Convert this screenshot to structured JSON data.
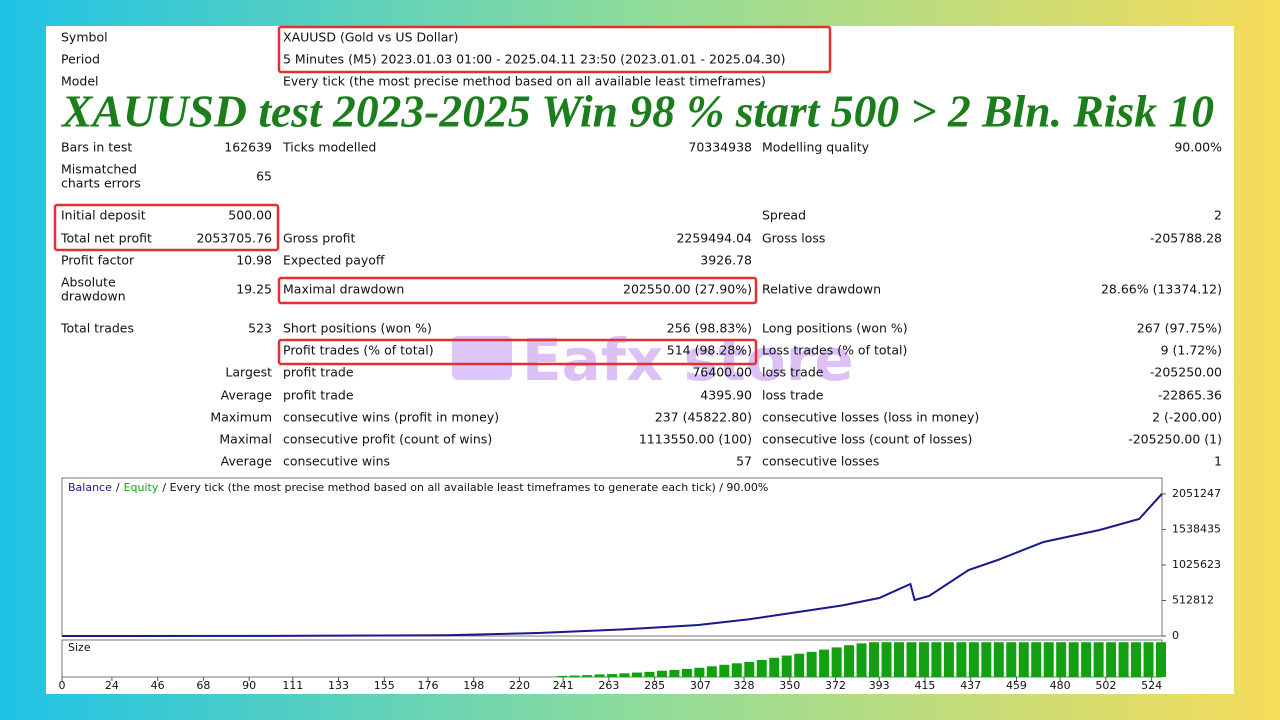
{
  "header": {
    "rows": [
      {
        "label": "Symbol",
        "value": "XAUUSD (Gold vs US Dollar)"
      },
      {
        "label": "Period",
        "value": "5 Minutes (M5) 2023.01.03 01:00 - 2025.04.11 23:50 (2023.01.01 - 2025.04.30)"
      },
      {
        "label": "Model",
        "value": "Every tick (the most precise method based on all available least timeframes)"
      }
    ]
  },
  "headline": "XAUUSD  test 2023-2025 Win 98 % start 500 > 2 Bln. Risk 10",
  "watermark": "Eafx store",
  "report": {
    "rows": [
      {
        "label": "Bars in test",
        "value": "162639",
        "label2": "Ticks modelled",
        "value2": "70334938",
        "label3": "Modelling quality",
        "value3": "90.00%"
      },
      {
        "label": [
          "Mismatched",
          "charts errors"
        ],
        "value": "65"
      },
      {
        "label": "Initial deposit",
        "value": "500.00",
        "label3": "Spread",
        "value3": "2"
      },
      {
        "label": "Total net profit",
        "value": "2053705.76",
        "label2": "Gross profit",
        "value2": "2259494.04",
        "label3": "Gross loss",
        "value3": "-205788.28"
      },
      {
        "label": "Profit factor",
        "value": "10.98",
        "label2": "Expected payoff",
        "value2": "3926.78"
      },
      {
        "label": [
          "Absolute",
          "drawdown"
        ],
        "value": "19.25",
        "label2": "Maximal drawdown",
        "value2": "202550.00 (27.90%)",
        "label3": "Relative drawdown",
        "value3": "28.66% (13374.12)"
      },
      {
        "label": "Total trades",
        "value": "523",
        "label2": "Short positions (won %)",
        "value2": "256 (98.83%)",
        "label3": "Long positions (won %)",
        "value3": "267 (97.75%)"
      },
      {
        "label2": "Profit trades (% of total)",
        "value2": "514 (98.28%)",
        "label3": "Loss trades (% of total)",
        "value3": "9 (1.72%)"
      },
      {
        "prefix": "Largest",
        "label2": "profit trade",
        "value2": "76400.00",
        "label3": "loss trade",
        "value3": "-205250.00"
      },
      {
        "prefix": "Average",
        "label2": "profit trade",
        "value2": "4395.90",
        "label3": "loss trade",
        "value3": "-22865.36"
      },
      {
        "prefix": "Maximum",
        "label2": "consecutive wins (profit in money)",
        "value2": "237 (45822.80)",
        "label3": "consecutive losses (loss in money)",
        "value3": "2 (-200.00)"
      },
      {
        "prefix": "Maximal",
        "label2": "consecutive profit (count of wins)",
        "value2": "1113550.00 (100)",
        "label3": "consecutive loss (count of losses)",
        "value3": "-205250.00 (1)"
      },
      {
        "prefix": "Average",
        "label2": "consecutive wins",
        "value2": "57",
        "label3": "consecutive losses",
        "value3": "1"
      }
    ]
  },
  "chart_data": [
    {
      "type": "line",
      "legend_separator": "/",
      "legend_note": "/ Every tick (the most precise method based on all available least timeframes to generate each tick) / 90.00%",
      "x": [
        0,
        100,
        185,
        229,
        270,
        306,
        330,
        354,
        375,
        393,
        408,
        410,
        417,
        436,
        450,
        472,
        499,
        518,
        529
      ],
      "series": [
        {
          "name": "Balance",
          "color": "#1a1a8c",
          "values": [
            500,
            2000,
            12000,
            43000,
            95000,
            159000,
            240000,
            347000,
            440000,
            549000,
            751000,
            520000,
            578000,
            953000,
            1098000,
            1358000,
            1531000,
            1690000,
            2053705
          ]
        },
        {
          "name": "Equity",
          "color": "#1aa01a",
          "values": [
            500,
            2000,
            12000,
            43000,
            95000,
            159000,
            240000,
            347000,
            440000,
            549000,
            751000,
            520000,
            578000,
            953000,
            1098000,
            1358000,
            1531000,
            1690000,
            2053705
          ]
        }
      ],
      "xlim": [
        0,
        529
      ],
      "xticks": [
        0,
        24,
        46,
        68,
        90,
        111,
        133,
        155,
        176,
        198,
        220,
        241,
        263,
        285,
        307,
        328,
        350,
        372,
        393,
        415,
        437,
        459,
        480,
        502,
        524
      ],
      "ylim": [
        0,
        2282000
      ],
      "yticks": [
        0,
        512812,
        1025623,
        1538435,
        2051247
      ]
    },
    {
      "type": "bar",
      "title": "Size",
      "color": "#12a012",
      "x": [
        241,
        247,
        253,
        259,
        265,
        271,
        277,
        283,
        289,
        295,
        301,
        307,
        313,
        319,
        325,
        331,
        337,
        343,
        349,
        355,
        361,
        367,
        373,
        379,
        385,
        391,
        397,
        403,
        409,
        415,
        421,
        427,
        433,
        439,
        445,
        451,
        457,
        463,
        469,
        475,
        481,
        487,
        493,
        499,
        505,
        511,
        517,
        523,
        529
      ],
      "values": [
        0.3,
        0.4,
        0.5,
        0.7,
        0.8,
        1.0,
        1.2,
        1.4,
        1.7,
        1.9,
        2.2,
        2.5,
        2.9,
        3.3,
        3.7,
        4.1,
        4.6,
        5.2,
        5.8,
        6.3,
        6.8,
        7.4,
        8.0,
        8.6,
        9.1,
        9.4,
        9.4,
        9.4,
        9.4,
        9.4,
        9.4,
        9.4,
        9.4,
        9.4,
        9.4,
        9.4,
        9.4,
        9.4,
        9.4,
        9.4,
        9.4,
        9.4,
        9.4,
        9.4,
        9.4,
        9.4,
        9.4,
        9.4,
        9.4
      ],
      "xlim": [
        0,
        529
      ],
      "ylim": [
        0,
        10
      ]
    }
  ]
}
